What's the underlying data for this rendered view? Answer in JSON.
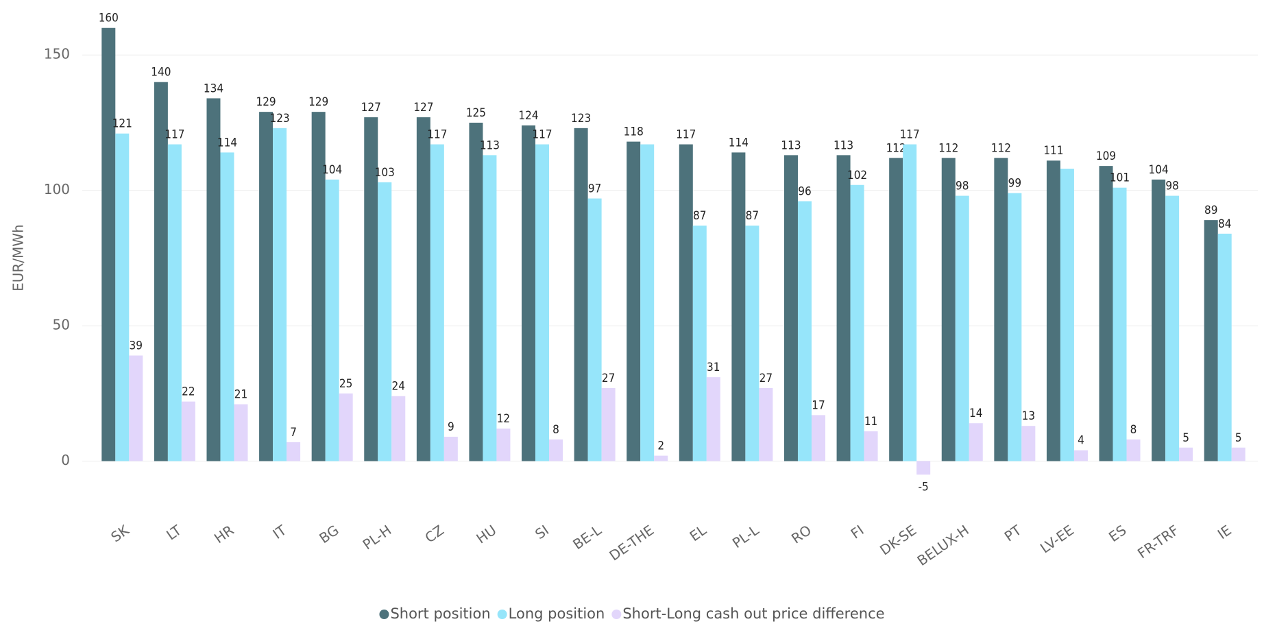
{
  "chart_data": {
    "type": "bar",
    "y_label": "EUR/MWh",
    "categories": [
      "SK",
      "LT",
      "HR",
      "IT",
      "BG",
      "PL-H",
      "CZ",
      "HU",
      "SI",
      "BE-L",
      "DE-THE",
      "EL",
      "PL-L",
      "RO",
      "FI",
      "DK-SE",
      "BELUX-H",
      "PT",
      "LV-EE",
      "ES",
      "FR-TRF",
      "IE"
    ],
    "series": [
      {
        "name": "Short position",
        "color": "#4d727b",
        "values": [
          160,
          140,
          134,
          129,
          129,
          127,
          127,
          125,
          124,
          123,
          118,
          117,
          114,
          113,
          113,
          112,
          112,
          112,
          111,
          109,
          104,
          89
        ]
      },
      {
        "name": "Long position",
        "color": "#96e5fa",
        "values": [
          121,
          117,
          114,
          123,
          104,
          103,
          117,
          113,
          117,
          97,
          117,
          87,
          87,
          96,
          102,
          117,
          98,
          99,
          108,
          101,
          98,
          84
        ],
        "value_labels": [
          "121",
          "117",
          "114",
          "123",
          "104",
          "103",
          "117",
          "113",
          "117",
          "97",
          null,
          "87",
          "87",
          "96",
          "102",
          "117",
          "98",
          "99",
          null,
          "101",
          "98",
          "84"
        ]
      },
      {
        "name": "Short-Long cash out price difference",
        "color": "#e2d6fb",
        "values": [
          39,
          22,
          21,
          7,
          25,
          24,
          9,
          12,
          8,
          27,
          2,
          31,
          27,
          17,
          11,
          -5,
          14,
          13,
          4,
          8,
          5,
          5
        ]
      }
    ],
    "ylim": [
      -10,
      165
    ],
    "yticks": [
      0,
      50,
      100,
      150
    ],
    "grid": true,
    "legend": "bottom"
  }
}
